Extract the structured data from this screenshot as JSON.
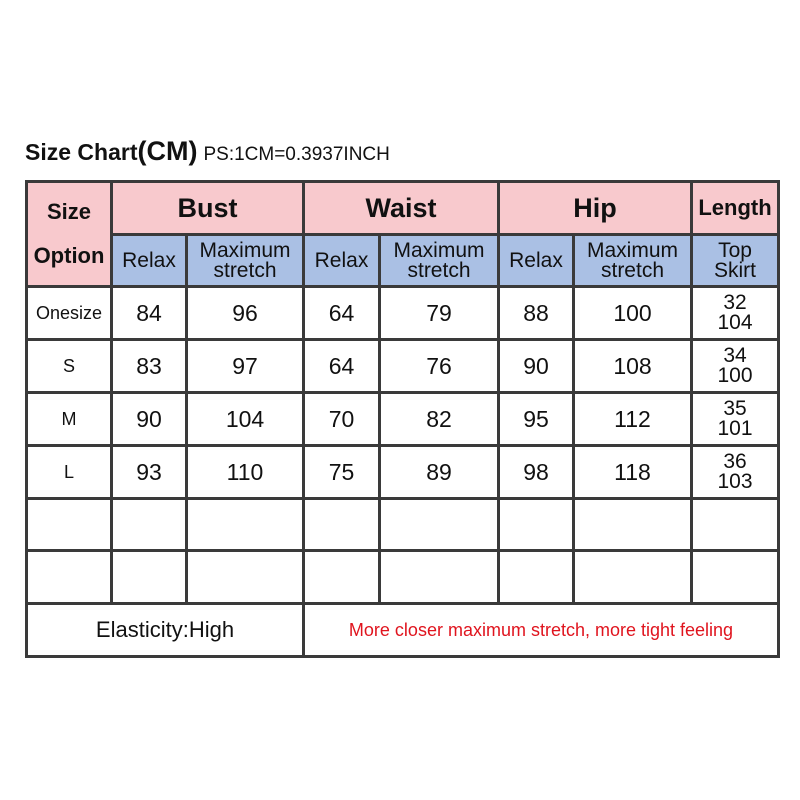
{
  "title": {
    "main": "Size Chart",
    "unit": "(CM)",
    "note": "PS:1CM=0.3937INCH"
  },
  "header": {
    "size_label": "Size",
    "option_label": "Option",
    "groups": [
      "Bust",
      "Waist",
      "Hip",
      "Length"
    ],
    "sub": {
      "relax": "Relax",
      "max_line1": "Maximum",
      "max_line2": "stretch",
      "len_line1": "Top",
      "len_line2": "Skirt"
    }
  },
  "rows": [
    {
      "size": "Onesize",
      "bust_relax": "84",
      "bust_max": "96",
      "waist_relax": "64",
      "waist_max": "79",
      "hip_relax": "88",
      "hip_max": "100",
      "top": "32",
      "skirt": "104"
    },
    {
      "size": "S",
      "bust_relax": "83",
      "bust_max": "97",
      "waist_relax": "64",
      "waist_max": "76",
      "hip_relax": "90",
      "hip_max": "108",
      "top": "34",
      "skirt": "100"
    },
    {
      "size": "M",
      "bust_relax": "90",
      "bust_max": "104",
      "waist_relax": "70",
      "waist_max": "82",
      "hip_relax": "95",
      "hip_max": "112",
      "top": "35",
      "skirt": "101"
    },
    {
      "size": "L",
      "bust_relax": "93",
      "bust_max": "110",
      "waist_relax": "75",
      "waist_max": "89",
      "hip_relax": "98",
      "hip_max": "118",
      "top": "36",
      "skirt": "103"
    }
  ],
  "footer": {
    "elasticity": "Elasticity:High",
    "note": "More closer maximum stretch, more tight feeling"
  },
  "colors": {
    "header_pink": "#f8c9cd",
    "header_blue": "#aac0e4",
    "note_red": "#e0141e",
    "border": "#3a3a3a"
  }
}
